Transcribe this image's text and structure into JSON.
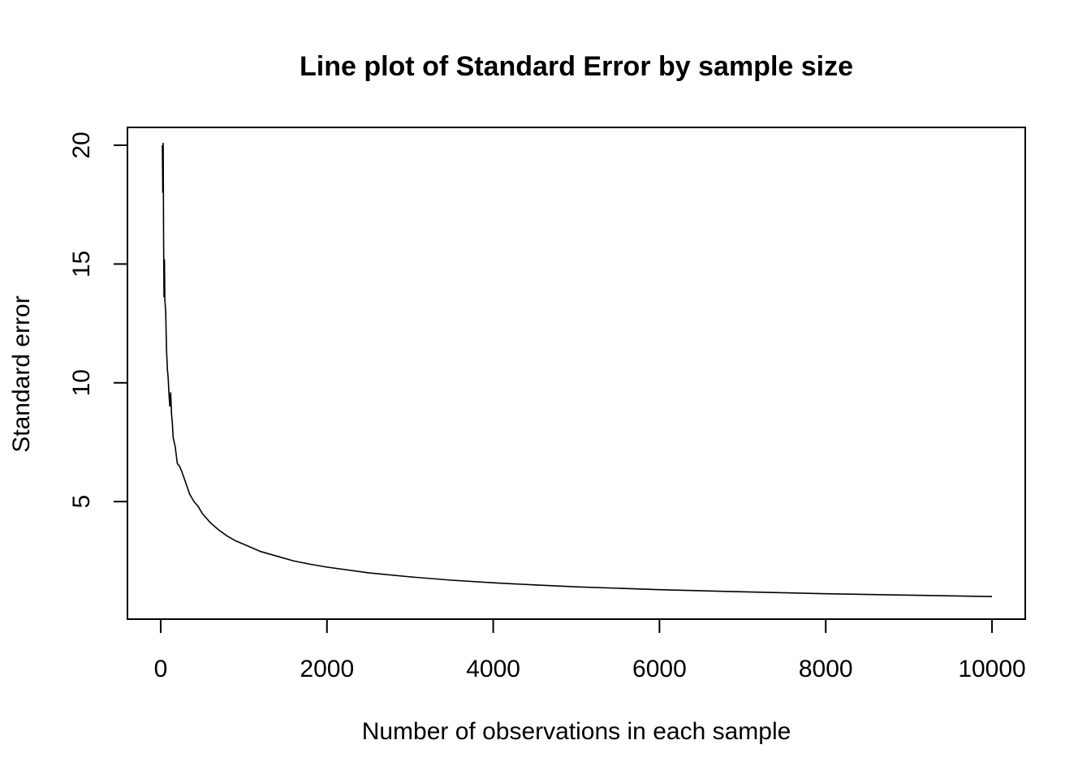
{
  "chart_data": {
    "type": "line",
    "title": "Line plot of Standard Error by sample size",
    "xlabel": "Number of observations in each sample",
    "ylabel": "Standard error",
    "xlim": [
      -400,
      10400
    ],
    "ylim": [
      0.05,
      20.75
    ],
    "xticks": [
      0,
      2000,
      4000,
      6000,
      8000,
      10000
    ],
    "yticks": [
      5,
      10,
      15,
      20
    ],
    "grid": false,
    "line_color": "#000000",
    "series": [
      {
        "x": [
          20,
          25,
          30,
          35,
          40,
          45,
          50,
          60,
          70,
          80,
          90,
          100,
          110,
          120,
          130,
          140,
          150,
          175,
          200,
          225,
          250,
          300,
          350,
          400,
          450,
          500,
          600,
          700,
          800,
          900,
          1000,
          1200,
          1400,
          1600,
          1800,
          2000,
          2500,
          3000,
          3500,
          4000,
          4500,
          5000,
          6000,
          7000,
          8000,
          9000,
          10000
        ],
        "y": [
          20.0,
          18.0,
          20.1,
          16.0,
          13.6,
          15.2,
          13.5,
          13.0,
          11.4,
          10.6,
          10.2,
          9.5,
          9.0,
          9.6,
          8.7,
          8.3,
          7.7,
          7.3,
          6.6,
          6.5,
          6.3,
          5.8,
          5.3,
          5.0,
          4.8,
          4.5,
          4.1,
          3.8,
          3.55,
          3.35,
          3.2,
          2.9,
          2.7,
          2.5,
          2.36,
          2.24,
          2.0,
          1.83,
          1.69,
          1.58,
          1.49,
          1.41,
          1.29,
          1.2,
          1.12,
          1.06,
          1.0
        ]
      }
    ]
  }
}
